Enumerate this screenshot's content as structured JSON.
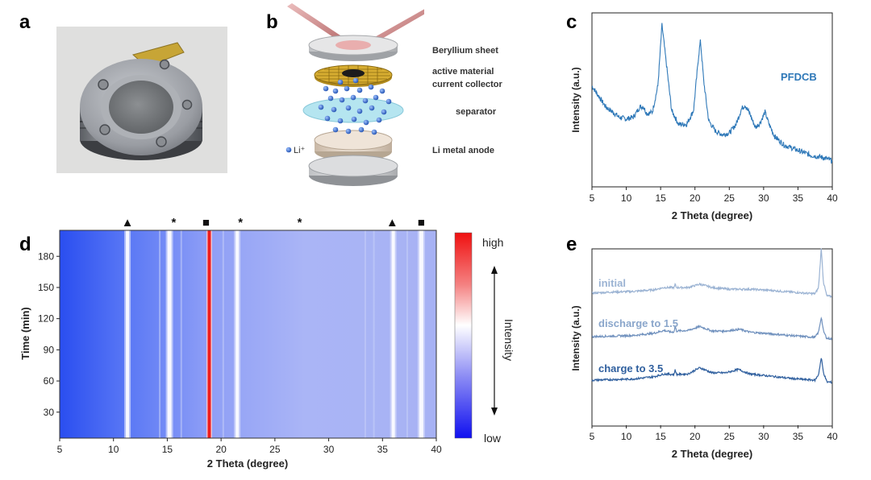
{
  "panels": {
    "a": "a",
    "b": "b",
    "c": "c",
    "d": "d",
    "e": "e"
  },
  "panel_b": {
    "labels": [
      "Beryllium sheet",
      "active material",
      "current collector",
      "separator",
      "Li metal anode"
    ],
    "li_label": "Li⁺"
  },
  "panel_c": {
    "series_label": "PFDCB",
    "series_color": "#2e78b8"
  },
  "panel_d": {
    "markers": [
      "▲",
      "*",
      "■",
      "*",
      "*",
      "▲",
      "■"
    ],
    "colorbar": {
      "high": "high",
      "low": "low",
      "label": "Intensity"
    }
  },
  "panel_e": {
    "labels": [
      "initial",
      "discharge to 1.5",
      "charge to 3.5"
    ],
    "colors": [
      "#9bb3d3",
      "#6f90bd",
      "#2f5f9e"
    ]
  },
  "chart_data": [
    {
      "id": "c",
      "type": "line",
      "title": "",
      "xlabel": "2 Theta (degree)",
      "ylabel": "Intensity (a.u.)",
      "xlim": [
        5,
        40
      ],
      "xticks": [
        "5",
        "10",
        "15",
        "20",
        "25",
        "30",
        "35",
        "40"
      ],
      "series": [
        {
          "name": "PFDCB",
          "x": [
            5,
            7,
            9,
            10,
            11,
            12,
            12.5,
            13,
            13.8,
            14.6,
            15.2,
            15.8,
            16.6,
            17.6,
            18.8,
            19.8,
            20.5,
            20.8,
            21.3,
            22,
            23,
            24,
            25,
            26,
            26.8,
            27.3,
            28,
            28.8,
            29.5,
            30.2,
            30.8,
            31.6,
            33,
            35,
            37,
            38.5,
            40
          ],
          "values": [
            0.58,
            0.46,
            0.4,
            0.39,
            0.4,
            0.46,
            0.46,
            0.42,
            0.43,
            0.58,
            0.93,
            0.72,
            0.44,
            0.36,
            0.36,
            0.44,
            0.74,
            0.84,
            0.6,
            0.38,
            0.32,
            0.3,
            0.31,
            0.36,
            0.45,
            0.47,
            0.42,
            0.34,
            0.37,
            0.43,
            0.36,
            0.29,
            0.24,
            0.21,
            0.18,
            0.17,
            0.15
          ]
        }
      ]
    },
    {
      "id": "d",
      "type": "heatmap",
      "xlabel": "2 Theta (degree)",
      "ylabel": "Time (min)",
      "xlim": [
        5,
        40
      ],
      "ylim": [
        5,
        205
      ],
      "xticks": [
        "5",
        "10",
        "15",
        "20",
        "25",
        "30",
        "35",
        "40"
      ],
      "yticks": [
        "30",
        "60",
        "90",
        "120",
        "150",
        "180"
      ],
      "yticks_values": [
        30,
        60,
        90,
        120,
        150,
        180
      ],
      "peaks": [
        {
          "x": 11.3,
          "level": "medium"
        },
        {
          "x": 15.2,
          "level": "medium-high"
        },
        {
          "x": 18.9,
          "level": "high"
        },
        {
          "x": 21.5,
          "level": "medium"
        },
        {
          "x": 36.0,
          "level": "medium"
        },
        {
          "x": 38.6,
          "level": "medium-high"
        }
      ],
      "marker_x": [
        11.3,
        15.6,
        18.6,
        21.8,
        27.3,
        35.9,
        38.6
      ]
    },
    {
      "id": "e",
      "type": "line",
      "xlabel": "2 Theta (degree)",
      "ylabel": "Intensity (a.u.)",
      "xlim": [
        5,
        40
      ],
      "xticks": [
        "5",
        "10",
        "15",
        "20",
        "25",
        "30",
        "35",
        "40"
      ],
      "series": [
        {
          "name": "initial",
          "x": [
            5,
            8,
            11,
            14,
            15.5,
            17,
            17.1,
            17.3,
            19,
            20.7,
            22.5,
            25,
            28,
            31,
            34,
            36,
            37.5,
            38,
            38.4,
            38.7,
            39.2,
            40
          ],
          "values": [
            0.2,
            0.22,
            0.23,
            0.26,
            0.3,
            0.3,
            0.36,
            0.3,
            0.3,
            0.36,
            0.3,
            0.27,
            0.27,
            0.25,
            0.22,
            0.2,
            0.19,
            0.3,
            1.0,
            0.4,
            0.15,
            0.14
          ]
        },
        {
          "name": "discharge to 1.5",
          "x": [
            5,
            8,
            11,
            14,
            15.5,
            16.5,
            17,
            17.1,
            17.3,
            19,
            20.7,
            22.5,
            24.5,
            26.5,
            28,
            31,
            34,
            36,
            37.5,
            38,
            38.4,
            38.7,
            39.2,
            40
          ],
          "values": [
            0.2,
            0.21,
            0.22,
            0.26,
            0.31,
            0.28,
            0.29,
            0.4,
            0.3,
            0.31,
            0.38,
            0.3,
            0.3,
            0.33,
            0.28,
            0.25,
            0.22,
            0.2,
            0.19,
            0.28,
            0.55,
            0.3,
            0.17,
            0.16
          ]
        },
        {
          "name": "charge to 3.5",
          "x": [
            5,
            8,
            11,
            14,
            15.5,
            17,
            17.1,
            17.3,
            19,
            20.7,
            22.5,
            24.5,
            26.3,
            28,
            31,
            34,
            36,
            37.5,
            38,
            38.4,
            38.7,
            39.2,
            40
          ],
          "values": [
            0.2,
            0.21,
            0.22,
            0.26,
            0.31,
            0.3,
            0.4,
            0.3,
            0.31,
            0.42,
            0.33,
            0.33,
            0.39,
            0.31,
            0.27,
            0.23,
            0.21,
            0.2,
            0.3,
            0.6,
            0.34,
            0.17,
            0.16
          ]
        }
      ]
    }
  ]
}
